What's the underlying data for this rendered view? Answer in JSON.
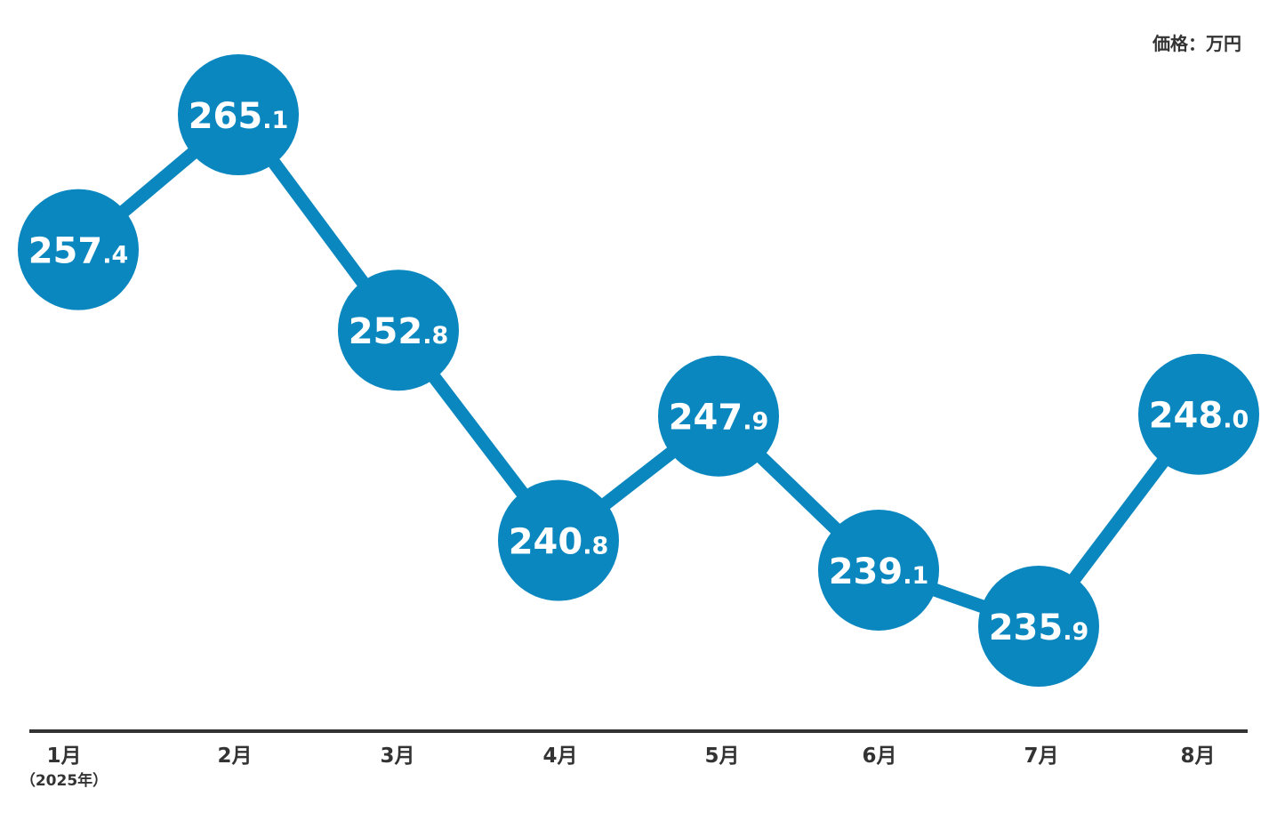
{
  "unit_label": "価格：万円",
  "first_month_note": "（2025年）",
  "colors": {
    "accent": "#0a87bf",
    "axis": "#333333",
    "text": "#333333",
    "value_text": "#ffffff"
  },
  "chart_data": {
    "type": "line",
    "title": "",
    "xlabel": "",
    "ylabel": "価格：万円",
    "categories": [
      "1月",
      "2月",
      "3月",
      "4月",
      "5月",
      "6月",
      "7月",
      "8月"
    ],
    "series": [
      {
        "values": [
          257.4,
          265.1,
          252.8,
          240.8,
          247.9,
          239.1,
          235.9,
          248.0
        ]
      }
    ],
    "value_labels": [
      "257.4",
      "265.1",
      "252.8",
      "240.8",
      "247.9",
      "239.1",
      "235.9",
      "248.0"
    ],
    "ylim": [
      235.9,
      265.1
    ],
    "grid": false,
    "legend": "none"
  }
}
